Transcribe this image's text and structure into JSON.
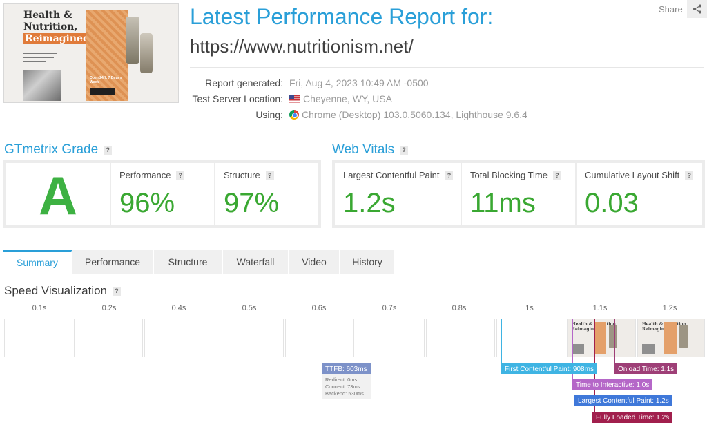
{
  "header": {
    "title": "Latest Performance Report for:",
    "url": "https://www.nutritionism.net/",
    "share_label": "Share"
  },
  "thumbnail": {
    "headline_lines": [
      "Health &",
      "Nutrition,",
      "Reimagined"
    ],
    "card_caption": "Open 24/7, 7 Days a Week"
  },
  "report": {
    "generated_label": "Report generated:",
    "generated_value": "Fri, Aug 4, 2023 10:49 AM -0500",
    "location_label": "Test Server Location:",
    "location_value": "Cheyenne, WY, USA",
    "using_label": "Using:",
    "using_value": "Chrome (Desktop) 103.0.5060.134, Lighthouse 9.6.4"
  },
  "grade": {
    "heading": "GTmetrix Grade",
    "letter": "A",
    "performance_label": "Performance",
    "performance_value": "96%",
    "structure_label": "Structure",
    "structure_value": "97%"
  },
  "vitals": {
    "heading": "Web Vitals",
    "lcp_label": "Largest Contentful Paint",
    "lcp_value": "1.2s",
    "tbt_label": "Total Blocking Time",
    "tbt_value": "11ms",
    "cls_label": "Cumulative Layout Shift",
    "cls_value": "0.03"
  },
  "tabs": [
    "Summary",
    "Performance",
    "Structure",
    "Waterfall",
    "Video",
    "History"
  ],
  "speed": {
    "heading": "Speed Visualization",
    "ticks": [
      "0.1s",
      "0.2s",
      "0.4s",
      "0.5s",
      "0.6s",
      "0.7s",
      "0.8s",
      "1s",
      "1.1s",
      "1.2s"
    ],
    "markers": {
      "ttfb": "TTFB: 603ms",
      "fcp": "First Contentful Paint: 908ms",
      "onload": "Onload Time: 1.1s",
      "tti": "Time to Interactive: 1.0s",
      "lcp": "Largest Contentful Paint: 1.2s",
      "fully": "Fully Loaded Time: 1.2s"
    },
    "ttfb_breakdown": [
      "Redirect: 0ms",
      "Connect: 73ms",
      "Backend: 530ms"
    ],
    "frame_caption_lines": [
      "Health & Nutrition,",
      "Reimagined"
    ]
  },
  "colors": {
    "accent": "#2a9fd8",
    "grade_green": "#3db142",
    "ttfb": "#7d92c9",
    "fcp": "#3fb4e3",
    "onload": "#9e3f77",
    "tti": "#b567c8",
    "lcp": "#3f78d9",
    "fully": "#a11f4d"
  }
}
